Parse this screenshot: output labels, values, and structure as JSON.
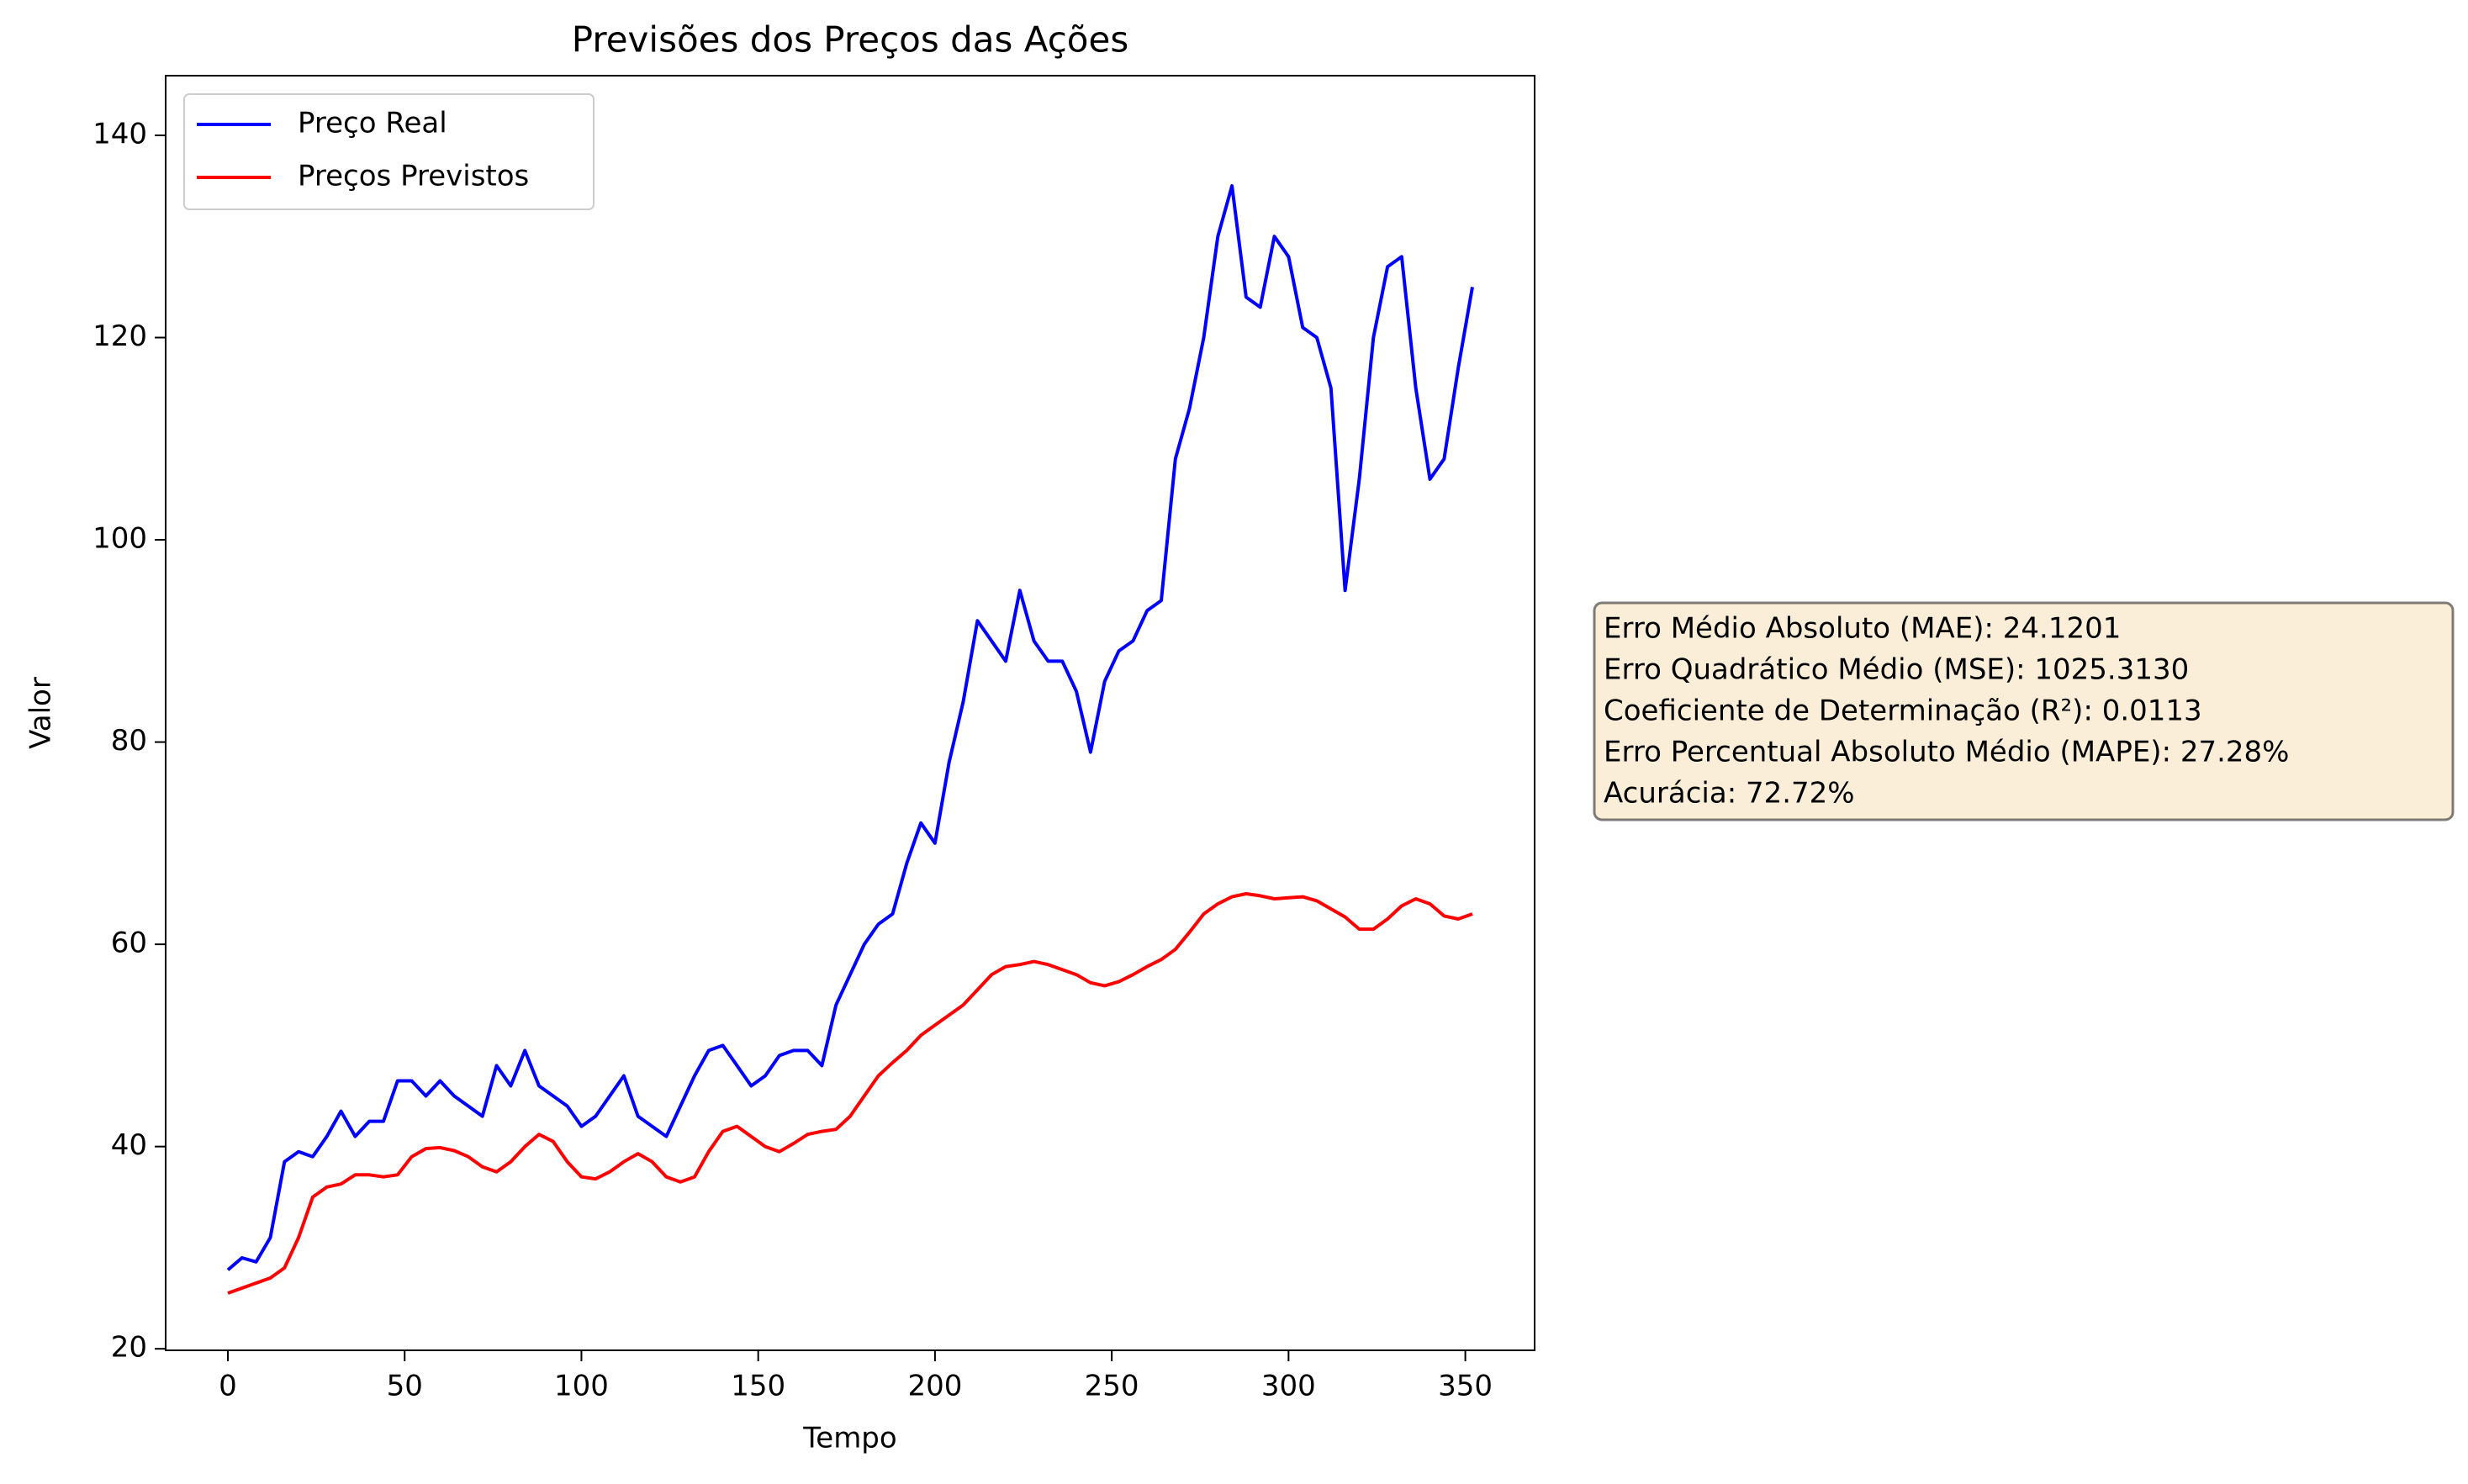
{
  "chart_data": {
    "type": "line",
    "title": "Previsões dos Preços das Ações",
    "x_label": "Tempo",
    "y_label": "Valor",
    "x": [
      0,
      4,
      8,
      12,
      16,
      20,
      24,
      28,
      32,
      36,
      40,
      44,
      48,
      52,
      56,
      60,
      64,
      68,
      72,
      76,
      80,
      84,
      88,
      92,
      96,
      100,
      104,
      108,
      112,
      116,
      120,
      124,
      128,
      132,
      136,
      140,
      144,
      148,
      152,
      156,
      160,
      164,
      168,
      172,
      176,
      180,
      184,
      188,
      192,
      196,
      200,
      204,
      208,
      212,
      216,
      220,
      224,
      228,
      232,
      236,
      240,
      244,
      248,
      252,
      256,
      260,
      264,
      268,
      272,
      276,
      280,
      284,
      288,
      292,
      296,
      300,
      304,
      308,
      312,
      316,
      320,
      324,
      328,
      332,
      336,
      340,
      344,
      348,
      352
    ],
    "series": [
      {
        "name": "Preço Real",
        "color": "#0000ff",
        "values": [
          27.8,
          29,
          28.6,
          31,
          38.5,
          39.5,
          39,
          41,
          43.5,
          41,
          42.5,
          42.5,
          46.5,
          46.5,
          45,
          46.5,
          45,
          44,
          43,
          48,
          46,
          49.5,
          46,
          45,
          44,
          42,
          43,
          45,
          47,
          43,
          42,
          41,
          44,
          47,
          49.5,
          50,
          48,
          46,
          47,
          49,
          49.5,
          49.5,
          48,
          54,
          57,
          60,
          62,
          63,
          68,
          72,
          70,
          78,
          84,
          92,
          90,
          88,
          95,
          90,
          88,
          88,
          85,
          79,
          86,
          89,
          90,
          93,
          94,
          108,
          113,
          120,
          130,
          135,
          124,
          123,
          130,
          128,
          121,
          120,
          115,
          95,
          106,
          120,
          127,
          128,
          115,
          106,
          108,
          117,
          125
        ]
      },
      {
        "name": "Preços Previstos",
        "color": "#ff0000",
        "values": [
          25.5,
          26,
          26.5,
          27,
          28,
          31,
          35,
          36,
          36.3,
          37.2,
          37.2,
          37,
          37.2,
          39,
          39.8,
          39.9,
          39.6,
          39,
          38,
          37.5,
          38.5,
          40,
          41.2,
          40.5,
          38.5,
          37,
          36.8,
          37.5,
          38.5,
          39.3,
          38.5,
          37,
          36.5,
          37,
          39.5,
          41.5,
          42,
          41,
          40,
          39.5,
          40.3,
          41.2,
          41.5,
          41.7,
          43,
          45,
          47,
          48.3,
          49.5,
          51,
          52,
          53,
          54,
          55.5,
          57,
          57.8,
          58,
          58.3,
          58,
          57.5,
          57,
          56.2,
          55.9,
          56.3,
          57,
          57.8,
          58.5,
          59.5,
          61.2,
          63,
          64,
          64.7,
          65,
          64.8,
          64.5,
          64.6,
          64.7,
          64.3,
          63.5,
          62.7,
          61.5,
          61.5,
          62.5,
          63.8,
          64.5,
          64,
          62.8,
          62.5,
          63
        ]
      }
    ],
    "xlim": [
      -17.6,
      369.6
    ],
    "ylim": [
      19.85,
      145.9
    ],
    "xticks": [
      0,
      50,
      100,
      150,
      200,
      250,
      300,
      350
    ],
    "yticks": [
      20,
      40,
      60,
      80,
      100,
      120,
      140
    ],
    "legend": "upper left",
    "metrics": [
      "Erro Médio Absoluto (MAE): 24.1201",
      "Erro Quadrático Médio (MSE): 1025.3130",
      "Coeficiente de Determinação (R²): 0.0113",
      "Erro Percentual Absoluto Médio (MAPE): 27.28%",
      "Acurácia: 72.72%"
    ]
  }
}
